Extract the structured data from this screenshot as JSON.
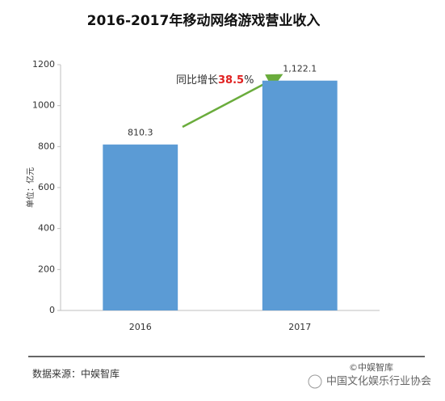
{
  "chart_data": {
    "type": "bar",
    "title": "2016-2017年移动网络游戏营业收入",
    "y_label": "单位：亿元",
    "categories": [
      "2016",
      "2017"
    ],
    "values": [
      810.3,
      1122.1
    ],
    "value_labels": [
      "810.3",
      "1,122.1"
    ],
    "color": "#5b9bd5",
    "ylim": [
      0,
      1200
    ],
    "yticks": [
      0,
      200,
      400,
      600,
      800,
      1000,
      1200
    ],
    "grid": false,
    "annotation": {
      "text": "同比增长",
      "value": 38.5,
      "suffix": "%"
    },
    "source": "数据来源：中娱智库",
    "watermark": "©中娱智库",
    "account": "中国文化娱乐行业协会"
  }
}
